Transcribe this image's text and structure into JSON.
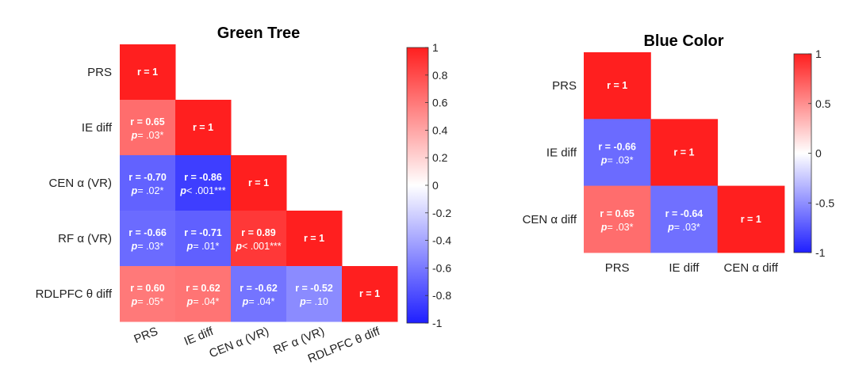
{
  "chart_data": [
    {
      "type": "heatmap",
      "title": "Green Tree",
      "row_labels": [
        "PRS",
        "IE diff",
        "CEN α (VR)",
        "RF α (VR)",
        "RDLPFC θ diff"
      ],
      "col_labels": [
        "PRS",
        "IE diff",
        "CEN α (VR)",
        "RF α (VR)",
        "RDLPFC θ diff"
      ],
      "cells": [
        {
          "row": 0,
          "col": 0,
          "r": 1,
          "r_text": "r = 1",
          "p_text": ""
        },
        {
          "row": 1,
          "col": 0,
          "r": 0.65,
          "r_text": "r = 0.65",
          "p_text": "= .03*",
          "p_sym": "p"
        },
        {
          "row": 1,
          "col": 1,
          "r": 1,
          "r_text": "r = 1",
          "p_text": ""
        },
        {
          "row": 2,
          "col": 0,
          "r": -0.7,
          "r_text": "r = -0.70",
          "p_text": "= .02*",
          "p_sym": "p"
        },
        {
          "row": 2,
          "col": 1,
          "r": -0.86,
          "r_text": "r = -0.86",
          "p_text": "< .001***",
          "p_sym": "p"
        },
        {
          "row": 2,
          "col": 2,
          "r": 1,
          "r_text": "r = 1",
          "p_text": ""
        },
        {
          "row": 3,
          "col": 0,
          "r": -0.66,
          "r_text": "r = -0.66",
          "p_text": "= .03*",
          "p_sym": "p"
        },
        {
          "row": 3,
          "col": 1,
          "r": -0.71,
          "r_text": "r = -0.71",
          "p_text": "= .01*",
          "p_sym": "p"
        },
        {
          "row": 3,
          "col": 2,
          "r": 0.89,
          "r_text": "r = 0.89",
          "p_text": "< .001***",
          "p_sym": "p"
        },
        {
          "row": 3,
          "col": 3,
          "r": 1,
          "r_text": "r = 1",
          "p_text": ""
        },
        {
          "row": 4,
          "col": 0,
          "r": 0.6,
          "r_text": "r = 0.60",
          "p_text": "= .05*",
          "p_sym": "p"
        },
        {
          "row": 4,
          "col": 1,
          "r": 0.62,
          "r_text": "r = 0.62",
          "p_text": "= .04*",
          "p_sym": "p"
        },
        {
          "row": 4,
          "col": 2,
          "r": -0.62,
          "r_text": "r = -0.62",
          "p_text": "= .04*",
          "p_sym": "p"
        },
        {
          "row": 4,
          "col": 3,
          "r": -0.52,
          "r_text": "r = -0.52",
          "p_text": "= .10",
          "p_sym": "p"
        },
        {
          "row": 4,
          "col": 4,
          "r": 1,
          "r_text": "r = 1",
          "p_text": ""
        }
      ],
      "colorbar": {
        "range": [
          -1,
          1
        ],
        "ticks": [
          1,
          0.8,
          0.6,
          0.4,
          0.2,
          0,
          -0.2,
          -0.4,
          -0.6,
          -0.8,
          -1
        ],
        "tick_labels": [
          "1",
          "0.8",
          "0.6",
          "0.4",
          "0.2",
          "0",
          "-0.2",
          "-0.4",
          "-0.6",
          "-0.8",
          "-1"
        ]
      },
      "colormap": {
        "neg": "#1f1fff",
        "mid": "#ffffff",
        "pos": "#ff1f1f"
      }
    },
    {
      "type": "heatmap",
      "title": "Blue Color",
      "row_labels": [
        "PRS",
        "IE diff",
        "CEN α diff"
      ],
      "col_labels": [
        "PRS",
        "IE diff",
        "CEN α diff"
      ],
      "cells": [
        {
          "row": 0,
          "col": 0,
          "r": 1,
          "r_text": "r = 1",
          "p_text": ""
        },
        {
          "row": 1,
          "col": 0,
          "r": -0.66,
          "r_text": "r = -0.66",
          "p_text": "= .03*",
          "p_sym": "p"
        },
        {
          "row": 1,
          "col": 1,
          "r": 1,
          "r_text": "r = 1",
          "p_text": ""
        },
        {
          "row": 2,
          "col": 0,
          "r": 0.65,
          "r_text": "r = 0.65",
          "p_text": "= .03*",
          "p_sym": "p"
        },
        {
          "row": 2,
          "col": 1,
          "r": -0.64,
          "r_text": "r = -0.64",
          "p_text": "= .03*",
          "p_sym": "p"
        },
        {
          "row": 2,
          "col": 2,
          "r": 1,
          "r_text": "r = 1",
          "p_text": ""
        }
      ],
      "colorbar": {
        "range": [
          -1,
          1
        ],
        "ticks": [
          1,
          0.5,
          0,
          -0.5,
          -1
        ],
        "tick_labels": [
          "1",
          "0.5",
          "0",
          "-0.5",
          "-1"
        ]
      },
      "colormap": {
        "neg": "#1f1fff",
        "mid": "#ffffff",
        "pos": "#ff1f1f"
      }
    }
  ]
}
